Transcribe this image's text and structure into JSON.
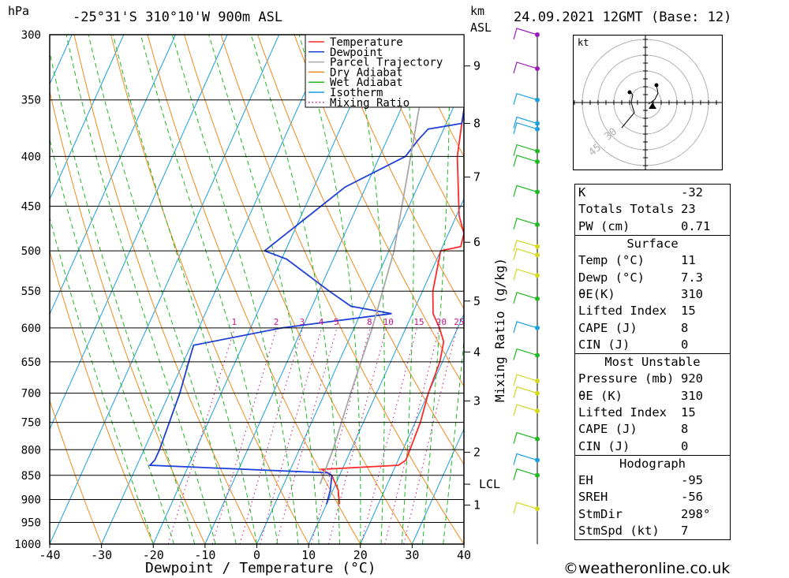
{
  "header": {
    "hpa_unit": "hPa",
    "location": "-25°31'S 310°10'W 900m ASL",
    "km_unit": "km",
    "asl_unit": "ASL",
    "datetime": "24.09.2021 12GMT (Base: 12)"
  },
  "footer": {
    "copyright": "©weatheronline.co.uk"
  },
  "chart_data": {
    "type": "line",
    "title": "",
    "xlabel": "Dewpoint / Temperature (°C)",
    "ylabel": "hPa",
    "right_label": "Mixing Ratio (g/kg)",
    "xlim": [
      -40,
      40
    ],
    "ylim_hpa": [
      1000,
      300
    ],
    "x_ticks": [
      "-40",
      "-30",
      "-20",
      "-10",
      "0",
      "10",
      "20",
      "30",
      "40"
    ],
    "y_ticks": [
      "300",
      "350",
      "400",
      "450",
      "500",
      "550",
      "600",
      "650",
      "700",
      "750",
      "800",
      "850",
      "900",
      "950",
      "1000"
    ],
    "km_ticks": [
      {
        "label": "9",
        "hpa": 323
      },
      {
        "label": "8",
        "hpa": 370
      },
      {
        "label": "7",
        "hpa": 420
      },
      {
        "label": "6",
        "hpa": 490
      },
      {
        "label": "5",
        "hpa": 563
      },
      {
        "label": "4",
        "hpa": 635
      },
      {
        "label": "3",
        "hpa": 713
      },
      {
        "label": "2",
        "hpa": 805
      },
      {
        "label": "LCL",
        "hpa": 868
      },
      {
        "label": "1",
        "hpa": 912
      }
    ],
    "mixing_ratio_labels": [
      "1",
      "2",
      "3",
      "4",
      "5",
      "8",
      "10",
      "15",
      "20",
      "25"
    ],
    "legend": {
      "position": "top-right",
      "entries": [
        {
          "name": "Temperature",
          "color": "#ff2a2a",
          "style": "solid"
        },
        {
          "name": "Dewpoint",
          "color": "#1f3fd8",
          "style": "solid"
        },
        {
          "name": "Parcel Trajectory",
          "color": "#a8a8a8",
          "style": "solid"
        },
        {
          "name": "Dry Adiabat",
          "color": "#f08a1e",
          "style": "solid"
        },
        {
          "name": "Wet Adiabat",
          "color": "#22b822",
          "style": "solid"
        },
        {
          "name": "Isotherm",
          "color": "#1aa0e0",
          "style": "solid"
        },
        {
          "name": "Mixing Ratio",
          "color": "#c8148c",
          "style": "dotted"
        }
      ]
    },
    "series": [
      {
        "name": "Temperature",
        "color": "#ff2a2a",
        "points": [
          [
            910,
            12.5
          ],
          [
            880,
            11
          ],
          [
            850,
            8.5
          ],
          [
            838,
            6
          ],
          [
            830,
            20.5
          ],
          [
            820,
            21.5
          ],
          [
            750,
            21
          ],
          [
            700,
            20
          ],
          [
            650,
            19.5
          ],
          [
            620,
            18.5
          ],
          [
            600,
            16.5
          ],
          [
            580,
            14
          ],
          [
            550,
            12
          ],
          [
            500,
            10
          ],
          [
            495,
            13.5
          ],
          [
            480,
            13
          ],
          [
            460,
            10.5
          ],
          [
            400,
            5
          ],
          [
            370,
            3
          ],
          [
            350,
            2
          ],
          [
            335,
            0.5
          ],
          [
            320,
            -0.5
          ],
          [
            300,
            -2.5
          ]
        ]
      },
      {
        "name": "Dewpoint",
        "color": "#1f3fd8",
        "points": [
          [
            910,
            10
          ],
          [
            880,
            9.5
          ],
          [
            850,
            8.5
          ],
          [
            845,
            7.5
          ],
          [
            830,
            -27.5
          ],
          [
            820,
            -27
          ],
          [
            800,
            -27
          ],
          [
            700,
            -28
          ],
          [
            650,
            -29
          ],
          [
            625,
            -29.5
          ],
          [
            600,
            -14
          ],
          [
            580,
            6
          ],
          [
            570,
            -2.5
          ],
          [
            550,
            -8
          ],
          [
            510,
            -19
          ],
          [
            500,
            -24
          ],
          [
            430,
            -14
          ],
          [
            400,
            -5
          ],
          [
            385,
            -4
          ],
          [
            375,
            -3
          ],
          [
            370,
            3
          ],
          [
            355,
            2
          ],
          [
            320,
            -2
          ],
          [
            300,
            -2
          ]
        ]
      },
      {
        "name": "Parcel Trajectory",
        "color": "#a8a8a8",
        "points": [
          [
            868,
            7
          ],
          [
            800,
            6.5
          ],
          [
            700,
            5
          ],
          [
            600,
            3.5
          ],
          [
            500,
            1
          ],
          [
            400,
            -4
          ],
          [
            350,
            -7
          ],
          [
            300,
            -10
          ]
        ]
      }
    ]
  },
  "wind_barbs": {
    "colors": {
      "high": "#9a1ab8",
      "mid": "#1aa0e0",
      "green": "#22b822",
      "yellow": "#d4d820"
    }
  },
  "hodograph": {
    "unit": "kt",
    "ring_labels": [
      "30",
      "45"
    ]
  },
  "stats": [
    {
      "label": "K",
      "value": "-32"
    },
    {
      "label": "Totals Totals",
      "value": "23"
    },
    {
      "label": "PW (cm)",
      "value": "0.71"
    },
    {
      "section": "Surface"
    },
    {
      "label": "Temp (°C)",
      "value": "11"
    },
    {
      "label": "Dewp (°C)",
      "value": "7.3"
    },
    {
      "label": "θE(K)",
      "value": "310"
    },
    {
      "label": "Lifted Index",
      "value": "15"
    },
    {
      "label": "CAPE (J)",
      "value": "8"
    },
    {
      "label": "CIN (J)",
      "value": "0"
    },
    {
      "section": "Most Unstable"
    },
    {
      "label": "Pressure (mb)",
      "value": "920"
    },
    {
      "label": "θE (K)",
      "value": "310"
    },
    {
      "label": "Lifted Index",
      "value": "15"
    },
    {
      "label": "CAPE (J)",
      "value": "8"
    },
    {
      "label": "CIN (J)",
      "value": "0"
    },
    {
      "section": "Hodograph"
    },
    {
      "label": "EH",
      "value": "-95"
    },
    {
      "label": "SREH",
      "value": "-56"
    },
    {
      "label": "StmDir",
      "value": "298°"
    },
    {
      "label": "StmSpd (kt)",
      "value": "7"
    }
  ]
}
